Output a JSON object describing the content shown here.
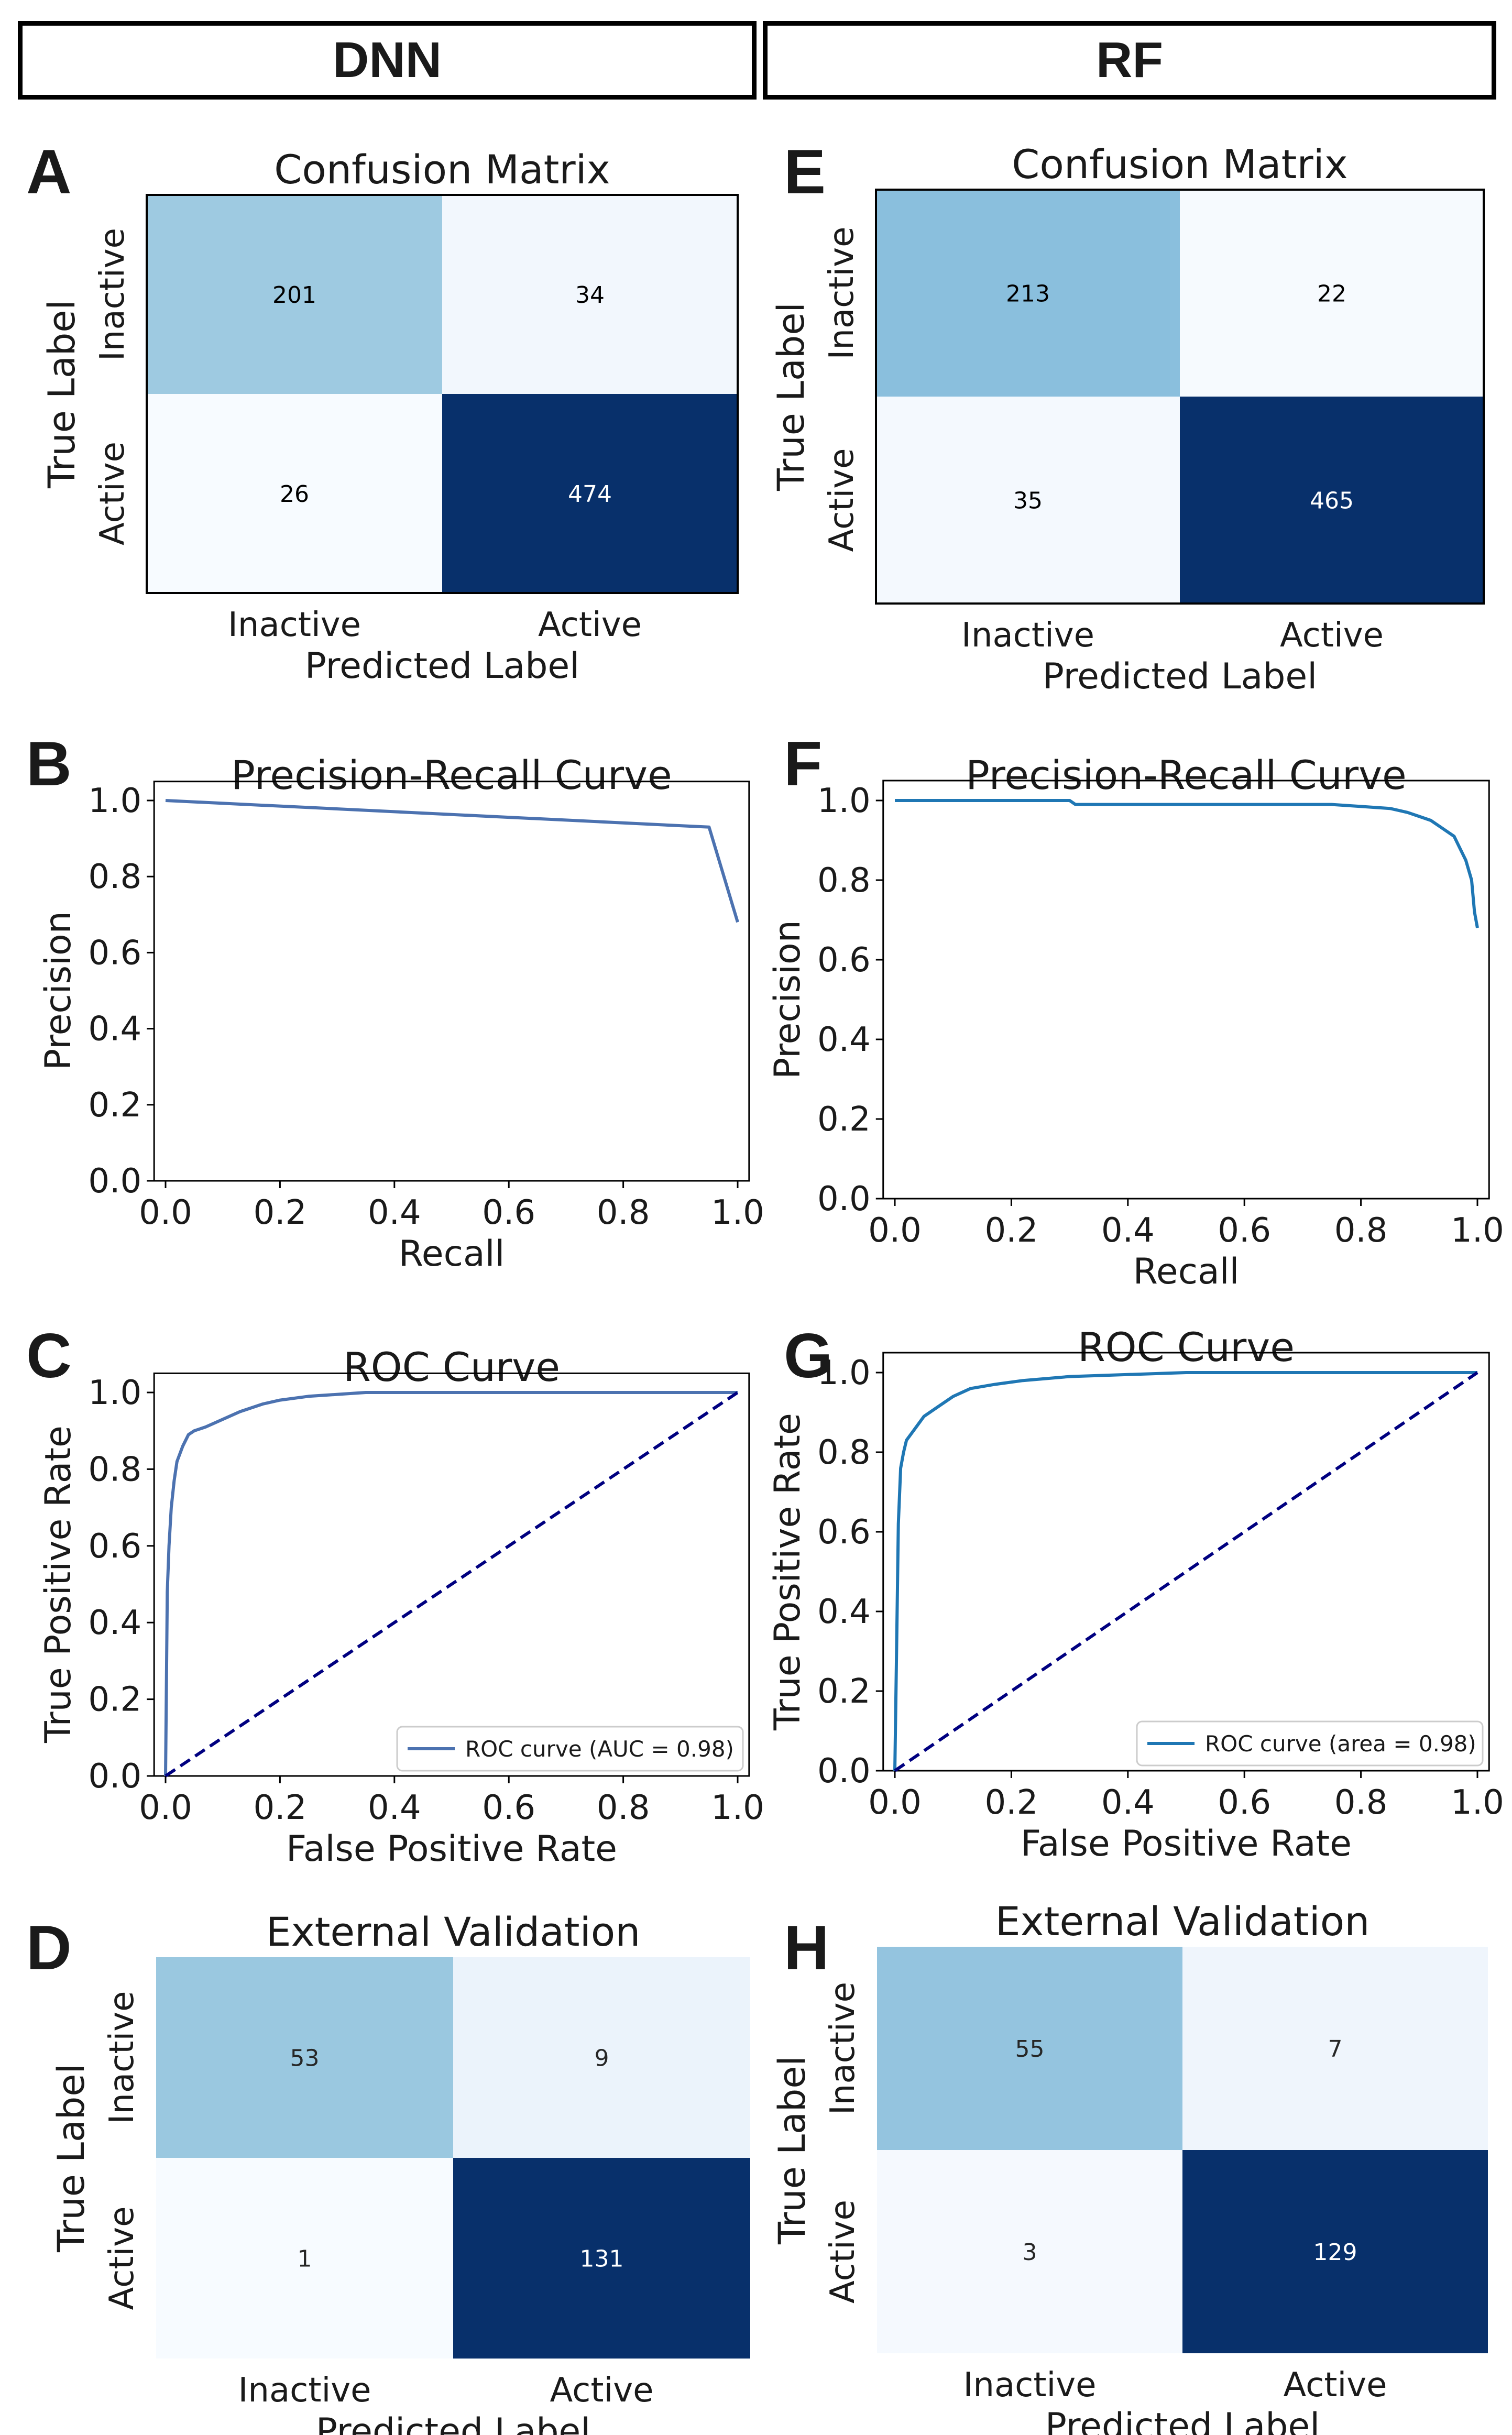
{
  "headers": {
    "left": "DNN",
    "right": "RF"
  },
  "panel_letters": [
    "A",
    "B",
    "C",
    "D",
    "E",
    "F",
    "G",
    "H"
  ],
  "colors": {
    "dark": "#08306b",
    "light": "#f1f6fc",
    "pr_line": "#4c72b0",
    "rf_line": "#1f77b4",
    "diag": "#000080",
    "axis": "#000000"
  },
  "chart_data": [
    {
      "id": "A",
      "type": "heatmap",
      "title": "Confusion Matrix",
      "xlabel": "Predicted Label",
      "ylabel": "True Label",
      "x_ticks": [
        "Inactive",
        "Active"
      ],
      "y_ticks": [
        "Inactive",
        "Active"
      ],
      "values": [
        [
          201,
          34
        ],
        [
          26,
          474
        ]
      ],
      "cell_colors": [
        [
          "#9ecae1",
          "#f2f7fd"
        ],
        [
          "#f7fbff",
          "#08306b"
        ]
      ],
      "text_colors": [
        [
          "#000000",
          "#000000"
        ],
        [
          "#000000",
          "#ffffff"
        ]
      ]
    },
    {
      "id": "E",
      "type": "heatmap",
      "title": "Confusion Matrix",
      "xlabel": "Predicted Label",
      "ylabel": "True Label",
      "x_ticks": [
        "Inactive",
        "Active"
      ],
      "y_ticks": [
        "Inactive",
        "Active"
      ],
      "values": [
        [
          213,
          22
        ],
        [
          35,
          465
        ]
      ],
      "cell_colors": [
        [
          "#8abfdd",
          "#f6fafe"
        ],
        [
          "#f4f9fe",
          "#08306b"
        ]
      ],
      "text_colors": [
        [
          "#000000",
          "#000000"
        ],
        [
          "#000000",
          "#ffffff"
        ]
      ]
    },
    {
      "id": "B",
      "type": "line",
      "title": "Precision-Recall Curve",
      "xlabel": "Recall",
      "ylabel": "Precision",
      "xlim": [
        0,
        1
      ],
      "ylim": [
        0,
        1
      ],
      "x_ticks": [
        "0.0",
        "0.2",
        "0.4",
        "0.6",
        "0.8",
        "1.0"
      ],
      "y_ticks": [
        "0.0",
        "0.2",
        "0.4",
        "0.6",
        "0.8",
        "1.0"
      ],
      "series": [
        {
          "name": "PR curve",
          "x": [
            0.0,
            0.95,
            1.0
          ],
          "y": [
            1.0,
            0.93,
            0.68
          ]
        }
      ]
    },
    {
      "id": "F",
      "type": "line",
      "title": "Precision-Recall Curve",
      "xlabel": "Recall",
      "ylabel": "Precision",
      "xlim": [
        0,
        1
      ],
      "ylim": [
        0,
        1
      ],
      "x_ticks": [
        "0.0",
        "0.2",
        "0.4",
        "0.6",
        "0.8",
        "1.0"
      ],
      "y_ticks": [
        "0.0",
        "0.2",
        "0.4",
        "0.6",
        "0.8",
        "1.0"
      ],
      "series": [
        {
          "name": "PR curve",
          "x": [
            0.0,
            0.3,
            0.31,
            0.5,
            0.75,
            0.8,
            0.85,
            0.88,
            0.9,
            0.92,
            0.94,
            0.96,
            0.97,
            0.98,
            0.99,
            0.995,
            1.0
          ],
          "y": [
            1.0,
            1.0,
            0.99,
            0.99,
            0.99,
            0.985,
            0.98,
            0.97,
            0.96,
            0.95,
            0.93,
            0.91,
            0.88,
            0.85,
            0.8,
            0.72,
            0.68
          ]
        }
      ]
    },
    {
      "id": "C",
      "type": "line",
      "title": "ROC Curve",
      "xlabel": "False Positive Rate",
      "ylabel": "True Positive Rate",
      "xlim": [
        0,
        1
      ],
      "ylim": [
        0,
        1
      ],
      "x_ticks": [
        "0.0",
        "0.2",
        "0.4",
        "0.6",
        "0.8",
        "1.0"
      ],
      "y_ticks": [
        "0.0",
        "0.2",
        "0.4",
        "0.6",
        "0.8",
        "1.0"
      ],
      "legend": "ROC curve (AUC = 0.98)",
      "legend_loc": "lower-right",
      "series": [
        {
          "name": "ROC curve (AUC = 0.98)",
          "x": [
            0.0,
            0.003,
            0.006,
            0.01,
            0.015,
            0.02,
            0.03,
            0.04,
            0.05,
            0.07,
            0.1,
            0.13,
            0.17,
            0.2,
            0.25,
            0.35,
            1.0
          ],
          "y": [
            0.0,
            0.48,
            0.6,
            0.7,
            0.77,
            0.82,
            0.86,
            0.89,
            0.9,
            0.91,
            0.93,
            0.95,
            0.97,
            0.98,
            0.99,
            1.0,
            1.0
          ]
        },
        {
          "name": "chance",
          "x": [
            0,
            1
          ],
          "y": [
            0,
            1
          ],
          "dashed": true
        }
      ]
    },
    {
      "id": "G",
      "type": "line",
      "title": "ROC Curve",
      "xlabel": "False Positive Rate",
      "ylabel": "True Positive Rate",
      "xlim": [
        0,
        1
      ],
      "ylim": [
        0,
        1
      ],
      "x_ticks": [
        "0.0",
        "0.2",
        "0.4",
        "0.6",
        "0.8",
        "1.0"
      ],
      "y_ticks": [
        "0.0",
        "0.2",
        "0.4",
        "0.6",
        "0.8",
        "1.0"
      ],
      "legend": "ROC curve (area = 0.98)",
      "legend_loc": "lower-right",
      "series": [
        {
          "name": "ROC curve (area = 0.98)",
          "x": [
            0.0,
            0.003,
            0.006,
            0.01,
            0.015,
            0.02,
            0.03,
            0.04,
            0.05,
            0.07,
            0.1,
            0.13,
            0.17,
            0.22,
            0.3,
            0.5,
            1.0
          ],
          "y": [
            0.0,
            0.3,
            0.62,
            0.76,
            0.8,
            0.83,
            0.85,
            0.87,
            0.89,
            0.91,
            0.94,
            0.96,
            0.97,
            0.98,
            0.99,
            1.0,
            1.0
          ]
        },
        {
          "name": "chance",
          "x": [
            0,
            1
          ],
          "y": [
            0,
            1
          ],
          "dashed": true
        }
      ]
    },
    {
      "id": "D",
      "type": "heatmap",
      "title": "External Validation",
      "xlabel": "Predicted Label",
      "ylabel": "True Label",
      "x_ticks": [
        "Inactive",
        "Active"
      ],
      "y_ticks": [
        "Inactive",
        "Active"
      ],
      "values": [
        [
          53,
          9
        ],
        [
          1,
          131
        ]
      ],
      "cell_colors": [
        [
          "#9ac8e0",
          "#ebf3fb"
        ],
        [
          "#f7fbff",
          "#08306b"
        ]
      ],
      "text_colors": [
        [
          "#262626",
          "#262626"
        ],
        [
          "#262626",
          "#ffffff"
        ]
      ]
    },
    {
      "id": "H",
      "type": "heatmap",
      "title": "External Validation",
      "xlabel": "Predicted Label",
      "ylabel": "True Label",
      "x_ticks": [
        "Inactive",
        "Active"
      ],
      "y_ticks": [
        "Inactive",
        "Active"
      ],
      "values": [
        [
          55,
          7
        ],
        [
          3,
          129
        ]
      ],
      "cell_colors": [
        [
          "#94c4df",
          "#eff5fc"
        ],
        [
          "#f5f9fe",
          "#08306b"
        ]
      ],
      "text_colors": [
        [
          "#262626",
          "#262626"
        ],
        [
          "#262626",
          "#ffffff"
        ]
      ]
    }
  ]
}
